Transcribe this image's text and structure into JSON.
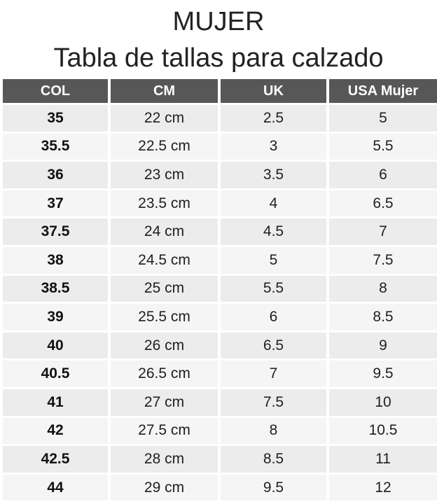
{
  "header": {
    "title": "MUJER",
    "subtitle": "Tabla de tallas para calzado"
  },
  "table": {
    "columns": [
      "COL",
      "CM",
      "UK",
      "USA Mujer"
    ],
    "rows": [
      [
        "35",
        "22 cm",
        "2.5",
        "5"
      ],
      [
        "35.5",
        "22.5 cm",
        "3",
        "5.5"
      ],
      [
        "36",
        "23 cm",
        "3.5",
        "6"
      ],
      [
        "37",
        "23.5 cm",
        "4",
        "6.5"
      ],
      [
        "37.5",
        "24 cm",
        "4.5",
        "7"
      ],
      [
        "38",
        "24.5 cm",
        "5",
        "7.5"
      ],
      [
        "38.5",
        "25 cm",
        "5.5",
        "8"
      ],
      [
        "39",
        "25.5 cm",
        "6",
        "8.5"
      ],
      [
        "40",
        "26 cm",
        "6.5",
        "9"
      ],
      [
        "40.5",
        "26.5 cm",
        "7",
        "9.5"
      ],
      [
        "41",
        "27 cm",
        "7.5",
        "10"
      ],
      [
        "42",
        "27.5 cm",
        "8",
        "10.5"
      ],
      [
        "42.5",
        "28 cm",
        "8.5",
        "11"
      ],
      [
        "44",
        "29 cm",
        "9.5",
        "12"
      ]
    ]
  },
  "colors": {
    "header_bg": "#575757",
    "header_text": "#ffffff",
    "cell_bg": "#ececec"
  }
}
